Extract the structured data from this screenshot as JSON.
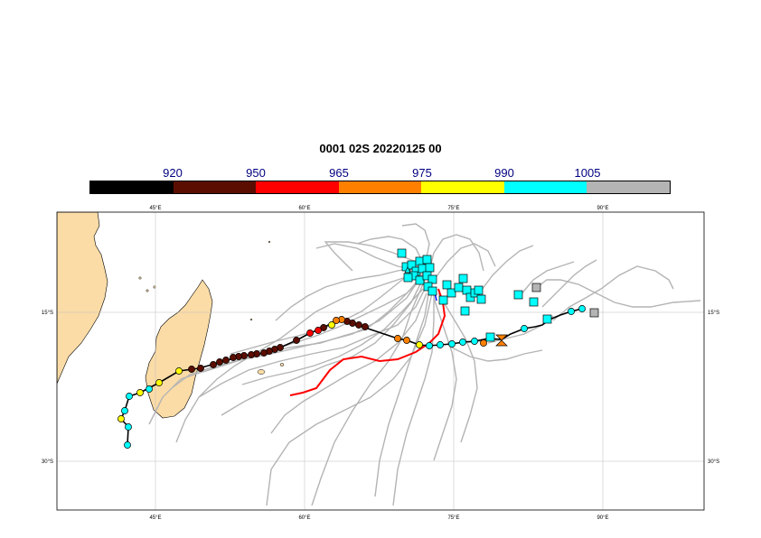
{
  "title": "0001 02S 20220125 00",
  "colorbar": {
    "colors": [
      "#000000",
      "#5a0d00",
      "#ff0000",
      "#ff8000",
      "#ffff00",
      "#00ffff",
      "#b4b4b4"
    ],
    "labels": [
      "920",
      "950",
      "965",
      "975",
      "990",
      "1005"
    ]
  },
  "axes": {
    "lon_ticks": [
      "45°E",
      "60°E",
      "75°E",
      "90°E"
    ],
    "lat_ticks": [
      "15°S",
      "30°S"
    ],
    "extent": {
      "lon_min": 35,
      "lon_max": 100,
      "lat_min": -5,
      "lat_max": -35
    }
  },
  "colors": {
    "land": "#fbdca6",
    "ensemble_tracks": "#b4b4b4",
    "observed_track": "#ff0000",
    "deterministic_track": "#000000"
  },
  "layers": {
    "ensemble_tracks": "grey forecast tracks",
    "observed_track": "red track line",
    "forecast_track": "black track with colored pressure markers",
    "final_positions": "square markers"
  }
}
